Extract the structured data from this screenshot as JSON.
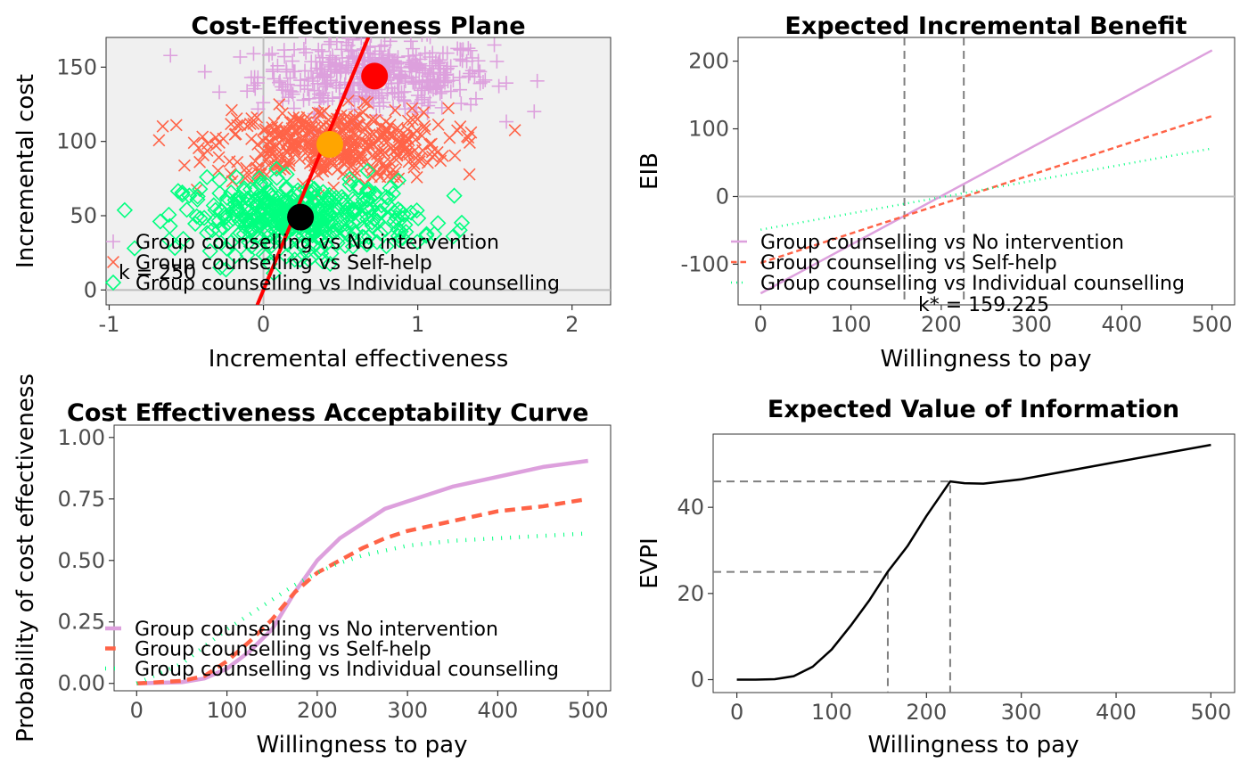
{
  "chart_data": [
    {
      "type": "scatter",
      "title": "Cost-Effectiveness Plane",
      "xlabel": "Incremental effectiveness",
      "ylabel": "Incremental cost",
      "xlim": [
        -1.02,
        2.25
      ],
      "ylim": [
        -10,
        170
      ],
      "xticks": [
        "-1",
        "0",
        "1",
        "2"
      ],
      "yticks": [
        "0",
        "50",
        "100",
        "150"
      ],
      "grid": false,
      "background": "#f0f0f0",
      "legend_position": "bottom-left",
      "wtp_annotation": "k = 250",
      "wtp_line": {
        "slope": 250,
        "color": "#ff0000"
      },
      "series": [
        {
          "name": "Group counselling vs No intervention",
          "marker": "plus",
          "color": "#dda0dd",
          "mean": [
            0.72,
            144
          ],
          "center": [
            0.72,
            144
          ],
          "spread": [
            0.38,
            12
          ],
          "n": 420,
          "highlight_color": "#ff0000"
        },
        {
          "name": "Group counselling vs Self-help",
          "marker": "cross",
          "color": "#ff6347",
          "mean": [
            0.43,
            98
          ],
          "center": [
            0.43,
            98
          ],
          "spread": [
            0.38,
            12
          ],
          "n": 420,
          "highlight_color": "#ffa500"
        },
        {
          "name": "Group counselling vs Individual counselling",
          "marker": "diamond",
          "color": "#00ff7f",
          "mean": [
            0.24,
            49
          ],
          "center": [
            0.24,
            49
          ],
          "spread": [
            0.38,
            12
          ],
          "n": 420,
          "highlight_color": "#000000"
        }
      ]
    },
    {
      "type": "line",
      "title": "Expected Incremental Benefit",
      "xlabel": "Willingness to pay",
      "ylabel": "EIB",
      "xlim": [
        -25,
        525
      ],
      "ylim": [
        -160,
        235
      ],
      "xticks": [
        "0",
        "100",
        "200",
        "300",
        "400",
        "500"
      ],
      "yticks": [
        "-100",
        "0",
        "100",
        "200"
      ],
      "grid": false,
      "legend_position": "bottom-left",
      "breakeven_lines": [
        159.225,
        225
      ],
      "breakeven_annotation": "k* = 159.225",
      "series": [
        {
          "name": "Group counselling vs No intervention",
          "color": "#dda0dd",
          "dash": "solid",
          "x": [
            0,
            500
          ],
          "y": [
            -143,
            216
          ]
        },
        {
          "name": "Group counselling vs Self-help",
          "color": "#ff6347",
          "dash": "dashed",
          "x": [
            0,
            500
          ],
          "y": [
            -98,
            119
          ]
        },
        {
          "name": "Group counselling vs Individual counselling",
          "color": "#00ff7f",
          "dash": "dotted",
          "x": [
            0,
            500
          ],
          "y": [
            -49,
            71
          ]
        }
      ]
    },
    {
      "type": "line",
      "title": "Cost Effectiveness Acceptability Curve",
      "xlabel": "Willingness to pay",
      "ylabel": "Probability of cost effectiveness",
      "xlim": [
        -25,
        525
      ],
      "ylim": [
        -0.03,
        1.05
      ],
      "xticks": [
        "0",
        "100",
        "200",
        "300",
        "400",
        "500"
      ],
      "yticks": [
        "0.00",
        "0.25",
        "0.50",
        "0.75",
        "1.00"
      ],
      "grid": false,
      "legend_position": "bottom-left",
      "series": [
        {
          "name": "Group counselling vs No intervention",
          "color": "#dda0dd",
          "dash": "solid",
          "x": [
            0,
            50,
            75,
            100,
            125,
            150,
            175,
            200,
            225,
            250,
            275,
            300,
            350,
            400,
            450,
            500
          ],
          "y": [
            0,
            0.005,
            0.02,
            0.06,
            0.13,
            0.22,
            0.37,
            0.5,
            0.59,
            0.65,
            0.71,
            0.74,
            0.8,
            0.84,
            0.88,
            0.905
          ]
        },
        {
          "name": "Group counselling vs Self-help",
          "color": "#ff6347",
          "dash": "dashed",
          "x": [
            0,
            50,
            75,
            100,
            125,
            150,
            175,
            200,
            225,
            250,
            275,
            300,
            350,
            400,
            450,
            500
          ],
          "y": [
            0,
            0.01,
            0.03,
            0.09,
            0.17,
            0.26,
            0.37,
            0.45,
            0.5,
            0.55,
            0.59,
            0.62,
            0.66,
            0.7,
            0.72,
            0.75
          ]
        },
        {
          "name": "Group counselling vs Individual counselling",
          "color": "#00ff7f",
          "dash": "dotted",
          "x": [
            0,
            50,
            75,
            100,
            125,
            150,
            175,
            200,
            225,
            250,
            275,
            300,
            350,
            400,
            450,
            500
          ],
          "y": [
            0,
            0.08,
            0.15,
            0.22,
            0.28,
            0.34,
            0.4,
            0.45,
            0.49,
            0.52,
            0.54,
            0.56,
            0.58,
            0.59,
            0.6,
            0.61
          ]
        }
      ]
    },
    {
      "type": "line",
      "title": "Expected Value of Information",
      "xlabel": "Willingness to pay",
      "ylabel": "EVPI",
      "xlim": [
        -25,
        525
      ],
      "ylim": [
        -3,
        57
      ],
      "xticks": [
        "0",
        "100",
        "200",
        "300",
        "400",
        "500"
      ],
      "yticks": [
        "0",
        "20",
        "40"
      ],
      "grid": false,
      "breakeven_points": [
        {
          "x": 159.225,
          "y": 25
        },
        {
          "x": 225,
          "y": 46
        }
      ],
      "series": [
        {
          "name": "",
          "color": "#000000",
          "dash": "solid",
          "x": [
            0,
            20,
            40,
            60,
            80,
            100,
            120,
            140,
            159,
            180,
            200,
            225,
            240,
            260,
            300,
            350,
            400,
            450,
            500
          ],
          "y": [
            0,
            0,
            0.1,
            0.8,
            3,
            7,
            12.5,
            18.5,
            25,
            31,
            38,
            46,
            45.6,
            45.5,
            46.5,
            48.5,
            50.5,
            52.5,
            54.5
          ]
        }
      ]
    }
  ]
}
